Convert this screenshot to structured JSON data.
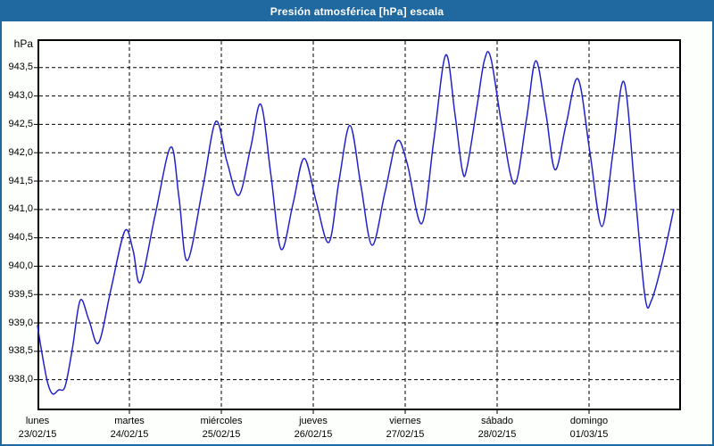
{
  "window": {
    "title": "Presión atmosférica [hPa] escala"
  },
  "colors": {
    "accent": "#2069a0",
    "line": "#2222cc",
    "grid": "#000000",
    "plot_border": "#000000",
    "plot_background": "#ffffff",
    "window_background": "#fcfffc",
    "title_text": "#ffffff"
  },
  "chart_data": {
    "type": "line",
    "title": "Presión atmosférica [hPa] escala",
    "ylabel": "hPa",
    "xlabel": "",
    "grid": "dashed",
    "legend": "none",
    "ylim": [
      937.46,
      944.0
    ],
    "x_range_days": [
      0,
      7
    ],
    "yticks": [
      {
        "value": 943.5,
        "label": "943,5"
      },
      {
        "value": 943.0,
        "label": "943,0"
      },
      {
        "value": 942.5,
        "label": "942,5"
      },
      {
        "value": 942.0,
        "label": "942,0"
      },
      {
        "value": 941.5,
        "label": "941,5"
      },
      {
        "value": 941.0,
        "label": "941,0"
      },
      {
        "value": 940.5,
        "label": "940,5"
      },
      {
        "value": 940.0,
        "label": "940,0"
      },
      {
        "value": 939.5,
        "label": "939,5"
      },
      {
        "value": 939.0,
        "label": "939,0"
      },
      {
        "value": 938.5,
        "label": "938,5"
      },
      {
        "value": 938.0,
        "label": "938,0"
      }
    ],
    "xdays": [
      {
        "name": "lunes",
        "date": "23/02/15"
      },
      {
        "name": "martes",
        "date": "24/02/15"
      },
      {
        "name": "miércoles",
        "date": "25/02/15"
      },
      {
        "name": "jueves",
        "date": "26/02/15"
      },
      {
        "name": "viernes",
        "date": "27/02/15"
      },
      {
        "name": "sábado",
        "date": "28/02/15"
      },
      {
        "name": "domingo",
        "date": "01/03/15"
      }
    ],
    "series": [
      {
        "name": "Presión atmosférica",
        "points_day_hpa": [
          [
            0.0,
            938.95
          ],
          [
            0.05,
            938.45
          ],
          [
            0.11,
            937.95
          ],
          [
            0.165,
            937.75
          ],
          [
            0.23,
            937.82
          ],
          [
            0.3,
            937.88
          ],
          [
            0.38,
            938.55
          ],
          [
            0.465,
            939.4
          ],
          [
            0.56,
            939.05
          ],
          [
            0.665,
            938.65
          ],
          [
            0.8,
            939.6
          ],
          [
            0.95,
            940.62
          ],
          [
            1.04,
            940.28
          ],
          [
            1.12,
            939.72
          ],
          [
            1.28,
            940.9
          ],
          [
            1.45,
            942.1
          ],
          [
            1.54,
            941.2
          ],
          [
            1.63,
            940.1
          ],
          [
            1.8,
            941.4
          ],
          [
            1.94,
            942.55
          ],
          [
            2.06,
            941.85
          ],
          [
            2.19,
            941.25
          ],
          [
            2.32,
            942.1
          ],
          [
            2.43,
            942.85
          ],
          [
            2.54,
            941.6
          ],
          [
            2.65,
            940.3
          ],
          [
            2.78,
            941.1
          ],
          [
            2.9,
            941.9
          ],
          [
            3.03,
            941.15
          ],
          [
            3.17,
            940.42
          ],
          [
            3.28,
            941.5
          ],
          [
            3.4,
            942.48
          ],
          [
            3.52,
            941.4
          ],
          [
            3.64,
            940.37
          ],
          [
            3.78,
            941.3
          ],
          [
            3.91,
            942.2
          ],
          [
            4.02,
            941.82
          ],
          [
            4.18,
            940.75
          ],
          [
            4.31,
            942.2
          ],
          [
            4.44,
            943.72
          ],
          [
            4.54,
            942.7
          ],
          [
            4.62,
            941.7
          ],
          [
            4.67,
            941.72
          ],
          [
            4.78,
            942.8
          ],
          [
            4.86,
            943.62
          ],
          [
            4.93,
            943.68
          ],
          [
            5.05,
            942.5
          ],
          [
            5.19,
            941.45
          ],
          [
            5.32,
            942.6
          ],
          [
            5.42,
            943.62
          ],
          [
            5.53,
            942.7
          ],
          [
            5.63,
            941.7
          ],
          [
            5.75,
            942.5
          ],
          [
            5.88,
            943.3
          ],
          [
            6.01,
            942.0
          ],
          [
            6.14,
            940.7
          ],
          [
            6.26,
            942.0
          ],
          [
            6.38,
            943.25
          ],
          [
            6.5,
            941.3
          ],
          [
            6.61,
            939.45
          ],
          [
            6.68,
            939.4
          ],
          [
            6.8,
            940.1
          ],
          [
            6.92,
            941.0
          ]
        ]
      }
    ]
  }
}
